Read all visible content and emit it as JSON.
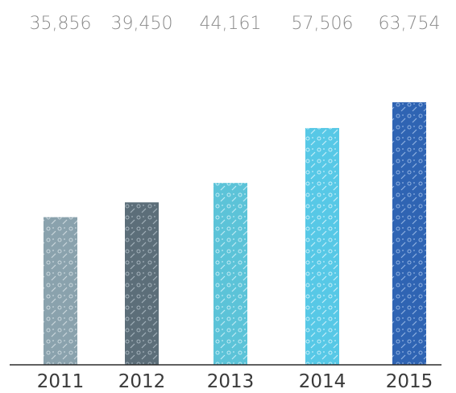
{
  "chart_data": {
    "type": "bar",
    "categories": [
      "2011",
      "2012",
      "2013",
      "2014",
      "2015"
    ],
    "values": [
      35856,
      39450,
      44161,
      57506,
      63754
    ],
    "value_labels": [
      "35,856",
      "39,450",
      "44,161",
      "57,506",
      "63,754"
    ],
    "title": "",
    "xlabel": "",
    "ylabel": "",
    "ylim": [
      0,
      70000
    ],
    "grid": false,
    "legend": "none",
    "bar_colors": [
      "#8aa2ad",
      "#5c6e79",
      "#5cc3d8",
      "#57c8e6",
      "#2f64b3"
    ],
    "bar_pattern_colors": [
      "#c9d6dc",
      "#a3b1ba",
      "#bfeaf4",
      "#c4eef9",
      "#8fb0e0"
    ]
  }
}
